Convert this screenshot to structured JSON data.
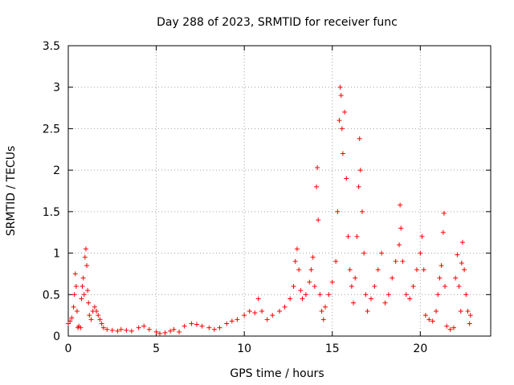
{
  "chart_data": {
    "type": "scatter",
    "title": "Day 288 of 2023, SRMTID for receiver func",
    "xlabel": "GPS time / hours",
    "ylabel": "SRMTID / TECUs",
    "xlim": [
      0,
      24
    ],
    "ylim": [
      0,
      3.5
    ],
    "x_ticks": [
      0,
      5,
      10,
      15,
      20
    ],
    "y_ticks": [
      0,
      0.5,
      1,
      1.5,
      2,
      2.5,
      3,
      3.5
    ],
    "x_tick_labels": [
      "0",
      "5",
      "10",
      "15",
      "20"
    ],
    "y_tick_labels": [
      "0",
      "0.5",
      "1",
      "1.5",
      "2",
      "2.5",
      "3",
      "3.5"
    ],
    "grid": true,
    "marker": "+",
    "color": "#ff0000",
    "series": [
      {
        "name": "SRMTID",
        "points": [
          [
            0.0,
            0.15
          ],
          [
            0.1,
            0.18
          ],
          [
            0.2,
            0.22
          ],
          [
            0.3,
            0.35
          ],
          [
            0.35,
            0.5
          ],
          [
            0.4,
            0.75
          ],
          [
            0.45,
            0.6
          ],
          [
            0.5,
            0.3
          ],
          [
            0.55,
            0.1
          ],
          [
            0.6,
            0.12
          ],
          [
            0.7,
            0.1
          ],
          [
            0.75,
            0.45
          ],
          [
            0.8,
            0.6
          ],
          [
            0.85,
            0.7
          ],
          [
            0.9,
            0.5
          ],
          [
            0.95,
            0.95
          ],
          [
            1.0,
            1.05
          ],
          [
            1.05,
            0.85
          ],
          [
            1.1,
            0.55
          ],
          [
            1.15,
            0.4
          ],
          [
            1.2,
            0.25
          ],
          [
            1.3,
            0.2
          ],
          [
            1.4,
            0.3
          ],
          [
            1.5,
            0.35
          ],
          [
            1.6,
            0.3
          ],
          [
            1.7,
            0.25
          ],
          [
            1.8,
            0.2
          ],
          [
            1.9,
            0.15
          ],
          [
            2.0,
            0.1
          ],
          [
            2.2,
            0.08
          ],
          [
            2.5,
            0.07
          ],
          [
            2.8,
            0.06
          ],
          [
            3.0,
            0.08
          ],
          [
            3.3,
            0.07
          ],
          [
            3.6,
            0.06
          ],
          [
            4.0,
            0.1
          ],
          [
            4.3,
            0.12
          ],
          [
            4.6,
            0.08
          ],
          [
            5.0,
            0.05
          ],
          [
            5.2,
            0.03
          ],
          [
            5.5,
            0.04
          ],
          [
            5.8,
            0.06
          ],
          [
            6.0,
            0.08
          ],
          [
            6.3,
            0.05
          ],
          [
            6.6,
            0.12
          ],
          [
            7.0,
            0.15
          ],
          [
            7.3,
            0.14
          ],
          [
            7.6,
            0.12
          ],
          [
            8.0,
            0.1
          ],
          [
            8.3,
            0.08
          ],
          [
            8.6,
            0.1
          ],
          [
            9.0,
            0.15
          ],
          [
            9.3,
            0.18
          ],
          [
            9.6,
            0.2
          ],
          [
            10.0,
            0.25
          ],
          [
            10.3,
            0.3
          ],
          [
            10.6,
            0.28
          ],
          [
            10.8,
            0.45
          ],
          [
            11.0,
            0.3
          ],
          [
            11.3,
            0.2
          ],
          [
            11.6,
            0.25
          ],
          [
            12.0,
            0.3
          ],
          [
            12.3,
            0.35
          ],
          [
            12.6,
            0.45
          ],
          [
            12.8,
            0.6
          ],
          [
            12.9,
            0.9
          ],
          [
            13.0,
            1.05
          ],
          [
            13.1,
            0.8
          ],
          [
            13.2,
            0.55
          ],
          [
            13.3,
            0.45
          ],
          [
            13.5,
            0.5
          ],
          [
            13.7,
            0.65
          ],
          [
            13.8,
            0.8
          ],
          [
            13.9,
            0.95
          ],
          [
            14.0,
            0.6
          ],
          [
            14.1,
            1.8
          ],
          [
            14.15,
            2.03
          ],
          [
            14.2,
            1.4
          ],
          [
            14.3,
            0.5
          ],
          [
            14.4,
            0.3
          ],
          [
            14.5,
            0.2
          ],
          [
            14.6,
            0.35
          ],
          [
            14.8,
            0.5
          ],
          [
            15.0,
            0.65
          ],
          [
            15.2,
            0.9
          ],
          [
            15.3,
            1.5
          ],
          [
            15.4,
            2.6
          ],
          [
            15.45,
            3.0
          ],
          [
            15.5,
            2.9
          ],
          [
            15.55,
            2.5
          ],
          [
            15.6,
            2.2
          ],
          [
            15.7,
            2.7
          ],
          [
            15.8,
            1.9
          ],
          [
            15.9,
            1.2
          ],
          [
            16.0,
            0.8
          ],
          [
            16.1,
            0.6
          ],
          [
            16.2,
            0.4
          ],
          [
            16.3,
            0.7
          ],
          [
            16.4,
            1.2
          ],
          [
            16.5,
            1.8
          ],
          [
            16.55,
            2.38
          ],
          [
            16.6,
            2.0
          ],
          [
            16.7,
            1.5
          ],
          [
            16.8,
            1.0
          ],
          [
            16.9,
            0.5
          ],
          [
            17.0,
            0.3
          ],
          [
            17.2,
            0.45
          ],
          [
            17.4,
            0.6
          ],
          [
            17.6,
            0.8
          ],
          [
            17.8,
            1.0
          ],
          [
            18.0,
            0.4
          ],
          [
            18.2,
            0.5
          ],
          [
            18.4,
            0.7
          ],
          [
            18.6,
            0.9
          ],
          [
            18.8,
            1.1
          ],
          [
            18.85,
            1.58
          ],
          [
            18.9,
            1.3
          ],
          [
            19.0,
            0.9
          ],
          [
            19.2,
            0.5
          ],
          [
            19.4,
            0.45
          ],
          [
            19.6,
            0.6
          ],
          [
            19.8,
            0.8
          ],
          [
            20.0,
            1.0
          ],
          [
            20.1,
            1.2
          ],
          [
            20.2,
            0.8
          ],
          [
            20.3,
            0.25
          ],
          [
            20.5,
            0.2
          ],
          [
            20.7,
            0.18
          ],
          [
            20.9,
            0.3
          ],
          [
            21.0,
            0.5
          ],
          [
            21.1,
            0.7
          ],
          [
            21.2,
            0.85
          ],
          [
            21.3,
            1.25
          ],
          [
            21.35,
            1.48
          ],
          [
            21.4,
            0.6
          ],
          [
            21.5,
            0.12
          ],
          [
            21.7,
            0.08
          ],
          [
            21.9,
            0.1
          ],
          [
            22.0,
            0.7
          ],
          [
            22.1,
            0.98
          ],
          [
            22.2,
            0.6
          ],
          [
            22.3,
            0.3
          ],
          [
            22.35,
            0.88
          ],
          [
            22.4,
            1.13
          ],
          [
            22.5,
            0.8
          ],
          [
            22.6,
            0.5
          ],
          [
            22.7,
            0.3
          ],
          [
            22.8,
            0.15
          ],
          [
            22.85,
            0.25
          ]
        ]
      }
    ]
  }
}
